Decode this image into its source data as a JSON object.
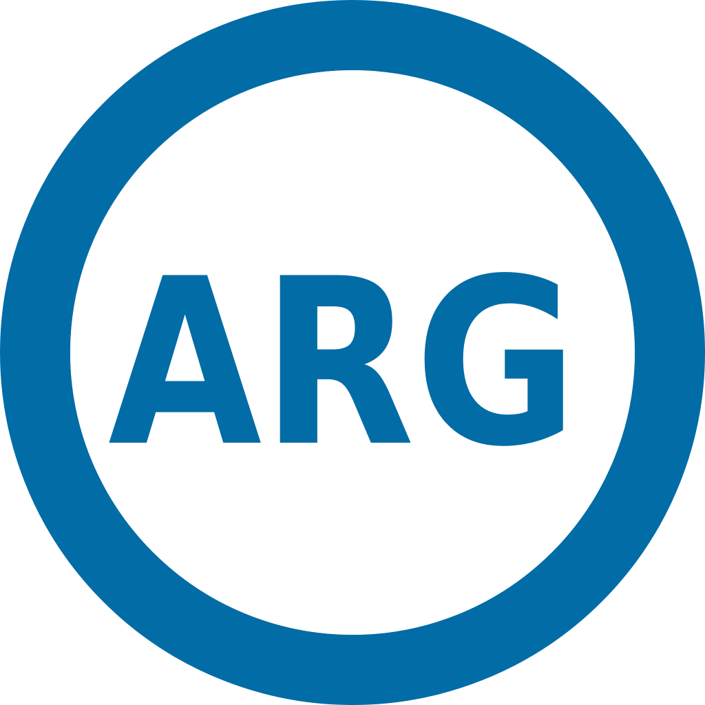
{
  "badge": {
    "label": "ARG",
    "ring_color": "#026ca6",
    "fill_color": "#ffffff",
    "text_color": "#026ca6"
  }
}
